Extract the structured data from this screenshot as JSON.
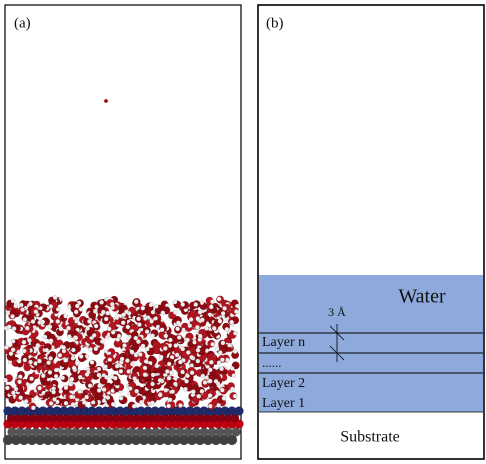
{
  "panel_a": {
    "label": "(a)"
  },
  "panel_b": {
    "label": "(b)",
    "water": "Water",
    "spacing": "3 Å",
    "layers": [
      "Layer n",
      "......",
      "Layer 2",
      "Layer 1"
    ],
    "substrate": "Substrate"
  }
}
